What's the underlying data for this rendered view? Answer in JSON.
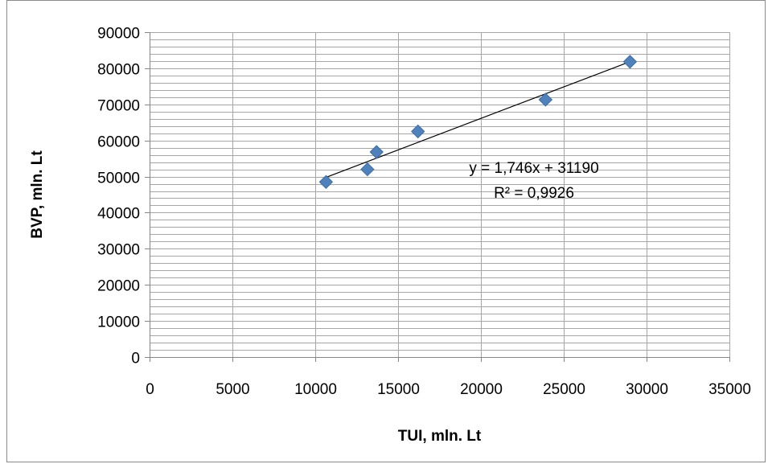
{
  "chart_data": {
    "type": "scatter",
    "title": "",
    "xlabel": "TUI, mln. Lt",
    "ylabel": "BVP, mln. Lt",
    "xlim": [
      0,
      35000
    ],
    "ylim": [
      0,
      90000
    ],
    "x_ticks": [
      0,
      5000,
      10000,
      15000,
      20000,
      25000,
      30000,
      35000
    ],
    "y_ticks": [
      0,
      10000,
      20000,
      30000,
      40000,
      50000,
      60000,
      70000,
      80000,
      90000
    ],
    "y_minor_step": 2000,
    "grid": true,
    "legend": "none",
    "marker": "diamond",
    "marker_color": "#4f81bd",
    "line_color": "#000000",
    "series": [
      {
        "points": [
          {
            "x": 10650,
            "y": 48500
          },
          {
            "x": 13150,
            "y": 52000
          },
          {
            "x": 13700,
            "y": 56800
          },
          {
            "x": 16200,
            "y": 62500
          },
          {
            "x": 23900,
            "y": 71300
          },
          {
            "x": 29000,
            "y": 81800
          }
        ]
      }
    ],
    "trendline": {
      "type": "linear",
      "slope": 1.746,
      "intercept": 31190,
      "x_range": [
        10650,
        29000
      ],
      "equation_label": "y = 1,746x + 31190",
      "r2_label": "R² = 0,9926"
    }
  }
}
